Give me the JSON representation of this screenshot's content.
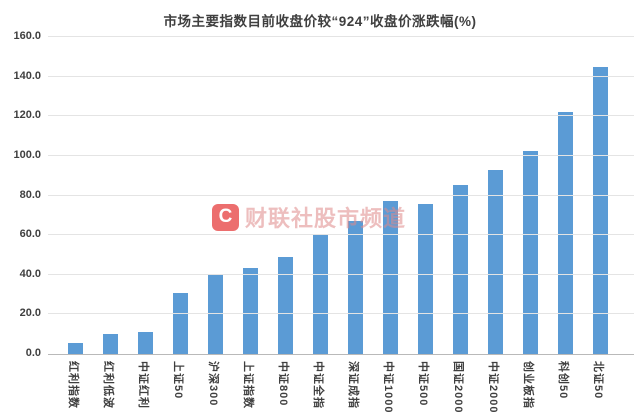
{
  "title": "市场主要指数目前收盘价较“924”收盘价涨跌幅(%)",
  "watermark": {
    "logo_letter": "C",
    "text": "财联社股市频道"
  },
  "colors": {
    "bar": "#5b9bd5",
    "gridline": "#e4e4e4",
    "axis_line": "#b9b9b9",
    "text": "#3f3f3f",
    "watermark_red": "#e84b4b"
  },
  "chart_data": {
    "type": "bar",
    "title": "市场主要指数目前收盘价较“924”收盘价涨跌幅(%)",
    "categories": [
      "红利指数",
      "红利低波",
      "中证红利",
      "上证50",
      "沪深300",
      "上证指数",
      "中证800",
      "中证全指",
      "深证成指",
      "中证1000",
      "中证500",
      "国证2000",
      "中证2000",
      "创业板指",
      "科创50",
      "北证50"
    ],
    "values": [
      5.7,
      10.1,
      11.1,
      31.0,
      40.5,
      43.2,
      49.0,
      60.0,
      67.0,
      77.0,
      75.5,
      85.5,
      93.0,
      102.5,
      122.0,
      145.0
    ],
    "xlabel": "",
    "ylabel": "",
    "ylim": [
      0,
      160
    ],
    "ytick_step": 20,
    "yticks": [
      "0.0",
      "20.0",
      "40.0",
      "60.0",
      "80.0",
      "100.0",
      "120.0",
      "140.0",
      "160.0"
    ],
    "grid": true,
    "legend": false,
    "bar_color": "#5b9bd5"
  }
}
